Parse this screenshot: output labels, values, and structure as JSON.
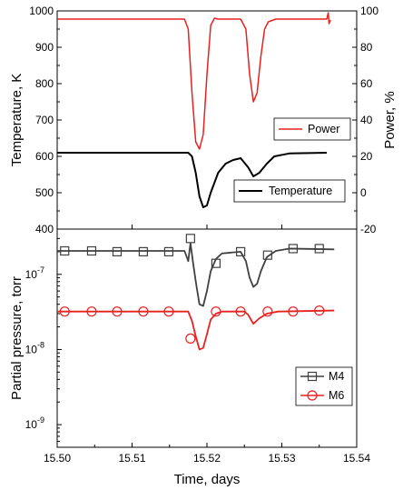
{
  "chart_data": [
    {
      "type": "line",
      "panel": "top",
      "xlim": [
        15.5,
        15.54
      ],
      "xlabel": "",
      "ylabel": "Temperature, K",
      "ylim": [
        400,
        1000
      ],
      "yticks": [
        "400",
        "500",
        "600",
        "700",
        "800",
        "900",
        "1000"
      ],
      "y2label": "Power, %",
      "y2lim": [
        -20,
        100
      ],
      "y2ticks": [
        "-20",
        "0",
        "20",
        "40",
        "60",
        "80",
        "100"
      ],
      "grid": false,
      "series": [
        {
          "name": "Power",
          "axis": "right",
          "color": "#e8201e",
          "x": [
            15.5,
            15.517,
            15.5175,
            15.518,
            15.5185,
            15.519,
            15.5195,
            15.52,
            15.5205,
            15.521,
            15.5215,
            15.5225,
            15.5245,
            15.5252,
            15.5257,
            15.5262,
            15.5267,
            15.5272,
            15.5277,
            15.5282,
            15.5292,
            15.536,
            15.5362,
            15.5363,
            15.5365
          ],
          "y": [
            95.5,
            95.5,
            90,
            55,
            28,
            24,
            32,
            65,
            92,
            96,
            95.5,
            95.5,
            95.5,
            90,
            65,
            50,
            55,
            75,
            90,
            94,
            95.5,
            95.5,
            99,
            93,
            95
          ]
        },
        {
          "name": "Temperature",
          "axis": "left",
          "color": "#000000",
          "x": [
            15.5,
            15.5175,
            15.518,
            15.5185,
            15.519,
            15.5195,
            15.52,
            15.5205,
            15.5215,
            15.5225,
            15.5235,
            15.5245,
            15.5255,
            15.5262,
            15.527,
            15.528,
            15.529,
            15.531,
            15.536
          ],
          "y": [
            610,
            610,
            600,
            555,
            490,
            460,
            465,
            500,
            555,
            580,
            590,
            595,
            570,
            545,
            555,
            580,
            600,
            608,
            610
          ]
        }
      ]
    },
    {
      "type": "line",
      "panel": "bottom",
      "xlim": [
        15.5,
        15.54
      ],
      "xticks": [
        "15.50",
        "15.51",
        "15.52",
        "15.53",
        "15.54"
      ],
      "xlabel": "Time, days",
      "ylabel": "Partial pressure, torr",
      "yscale": "log",
      "ylim": [
        5e-10,
        4e-07
      ],
      "yticks": [
        {
          "value": 1e-09,
          "base": "10",
          "exp": "-9"
        },
        {
          "value": 1e-08,
          "base": "10",
          "exp": "-8"
        },
        {
          "value": 1e-07,
          "base": "10",
          "exp": "-7"
        }
      ],
      "grid": false,
      "series": [
        {
          "name": "M4",
          "color": "#404040",
          "marker": "square",
          "x": [
            15.5,
            15.517,
            15.5175,
            15.5178,
            15.5182,
            15.5186,
            15.519,
            15.5195,
            15.52,
            15.5205,
            15.5212,
            15.522,
            15.5245,
            15.5252,
            15.5257,
            15.5262,
            15.5267,
            15.5272,
            15.528,
            15.5292,
            15.531,
            15.537
          ],
          "y": [
            2.05e-07,
            2.05e-07,
            1.5e-07,
            2.6e-07,
            1.3e-07,
            7e-08,
            4e-08,
            3.8e-08,
            6e-08,
            1.1e-07,
            1.6e-07,
            1.9e-07,
            2e-07,
            1.5e-07,
            9e-08,
            6.8e-08,
            7.5e-08,
            1.1e-07,
            1.7e-07,
            2.05e-07,
            2.2e-07,
            2.15e-07
          ],
          "markers_x": [
            15.501,
            15.5046,
            15.508,
            15.5115,
            15.5149,
            15.5178,
            15.5212,
            15.5245,
            15.5281,
            15.5315,
            15.535
          ],
          "markers_y": [
            2.05e-07,
            2.05e-07,
            2e-07,
            2e-07,
            2e-07,
            3e-07,
            1.4e-07,
            2e-07,
            1.8e-07,
            2.2e-07,
            2.2e-07
          ]
        },
        {
          "name": "M6",
          "color": "#e8201e",
          "marker": "circle",
          "x": [
            15.5,
            15.5175,
            15.518,
            15.5185,
            15.519,
            15.5195,
            15.52,
            15.5205,
            15.5212,
            15.522,
            15.525,
            15.5255,
            15.5262,
            15.527,
            15.528,
            15.5295,
            15.537
          ],
          "y": [
            3.2e-08,
            3.2e-08,
            2.4e-08,
            1.5e-08,
            1e-08,
            1.05e-08,
            1.6e-08,
            2.5e-08,
            3e-08,
            3.2e-08,
            3.2e-08,
            2.9e-08,
            2.2e-08,
            2.6e-08,
            3e-08,
            3.2e-08,
            3.3e-08
          ],
          "markers_x": [
            15.501,
            15.5046,
            15.508,
            15.5115,
            15.5149,
            15.5178,
            15.5212,
            15.5245,
            15.5281,
            15.5315,
            15.535
          ],
          "markers_y": [
            3.2e-08,
            3.2e-08,
            3.2e-08,
            3.2e-08,
            3.2e-08,
            1.4e-08,
            3.2e-08,
            3.2e-08,
            3.2e-08,
            3.2e-08,
            3.3e-08
          ]
        }
      ]
    }
  ]
}
